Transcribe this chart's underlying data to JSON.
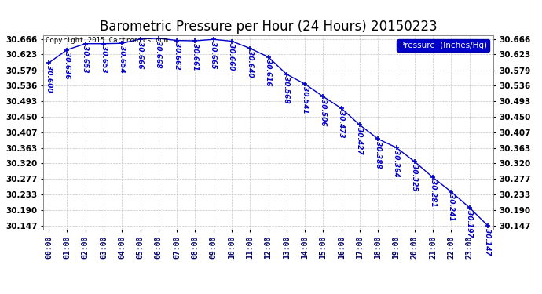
{
  "title": "Barometric Pressure per Hour (24 Hours) 20150223",
  "copyright": "Copyright 2015 Cartronics.com",
  "legend_label": "Pressure  (Inches/Hg)",
  "hour_labels": [
    "00:00",
    "01:00",
    "02:00",
    "03:00",
    "04:00",
    "05:00",
    "06:00",
    "07:00",
    "08:00",
    "09:00",
    "10:00",
    "11:00",
    "12:00",
    "13:00",
    "14:00",
    "15:00",
    "16:00",
    "17:00",
    "18:00",
    "19:00",
    "20:00",
    "21:00",
    "22:00",
    "23:00"
  ],
  "pressures": [
    30.6,
    30.636,
    30.653,
    30.653,
    30.654,
    30.666,
    30.668,
    30.662,
    30.661,
    30.665,
    30.66,
    30.64,
    30.616,
    30.568,
    30.541,
    30.506,
    30.473,
    30.427,
    30.388,
    30.364,
    30.325,
    30.281,
    30.241,
    30.197,
    30.147
  ],
  "hours": [
    0,
    1,
    2,
    3,
    4,
    5,
    6,
    7,
    8,
    9,
    10,
    11,
    12,
    13,
    14,
    15,
    16,
    17,
    18,
    19,
    20,
    21,
    22,
    23,
    24
  ],
  "ylim_min": 30.147,
  "ylim_max": 30.666,
  "yticks": [
    30.147,
    30.19,
    30.233,
    30.277,
    30.32,
    30.363,
    30.407,
    30.45,
    30.493,
    30.536,
    30.579,
    30.623,
    30.666
  ],
  "line_color": "#0000cc",
  "marker_color": "#0000cc",
  "label_color": "#0000cc",
  "bg_color": "#ffffff",
  "grid_color": "#aaaaaa",
  "title_color": "#000000",
  "legend_bg": "#0000cc",
  "legend_text": "#ffffff",
  "label_fontsize": 6.5,
  "title_fontsize": 12
}
